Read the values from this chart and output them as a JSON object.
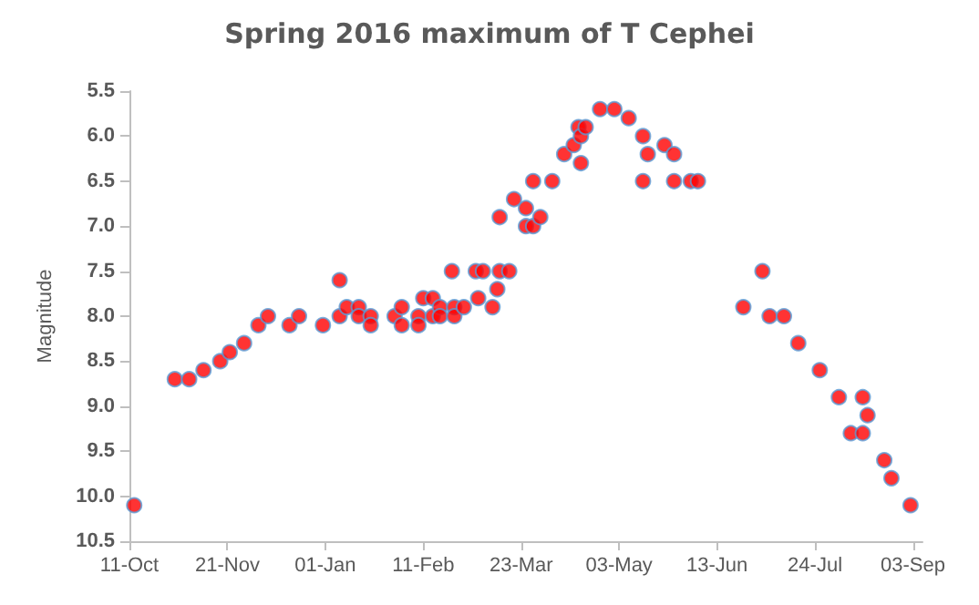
{
  "chart_data": {
    "type": "scatter",
    "title": "Spring 2016 maximum of T Cephei",
    "ylabel": "Magnitude",
    "marker": "circle",
    "color": "#ff0000",
    "x": [
      "2015-10-13",
      "2015-10-30",
      "2015-11-05",
      "2015-11-11",
      "2015-11-18",
      "2015-11-22",
      "2015-11-28",
      "2015-12-04",
      "2015-12-08",
      "2015-12-17",
      "2015-12-21",
      "2015-12-31",
      "2016-01-07",
      "2016-01-07",
      "2016-01-10",
      "2016-01-15",
      "2016-01-15",
      "2016-01-20",
      "2016-01-20",
      "2016-01-30",
      "2016-02-02",
      "2016-02-02",
      "2016-02-09",
      "2016-02-09",
      "2016-02-11",
      "2016-02-15",
      "2016-02-15",
      "2016-02-18",
      "2016-02-18",
      "2016-02-23",
      "2016-02-24",
      "2016-02-24",
      "2016-02-28",
      "2016-03-04",
      "2016-03-05",
      "2016-03-07",
      "2016-03-11",
      "2016-03-13",
      "2016-03-14",
      "2016-03-14",
      "2016-03-18",
      "2016-03-20",
      "2016-03-25",
      "2016-03-25",
      "2016-03-28",
      "2016-03-28",
      "2016-03-31",
      "2016-04-05",
      "2016-04-10",
      "2016-04-14",
      "2016-04-16",
      "2016-04-17",
      "2016-04-17",
      "2016-04-19",
      "2016-04-25",
      "2016-05-01",
      "2016-05-07",
      "2016-05-13",
      "2016-05-13",
      "2016-05-15",
      "2016-05-22",
      "2016-05-26",
      "2016-05-26",
      "2016-06-02",
      "2016-06-05",
      "2016-06-24",
      "2016-07-02",
      "2016-07-05",
      "2016-07-11",
      "2016-07-17",
      "2016-07-26",
      "2016-08-03",
      "2016-08-08",
      "2016-08-13",
      "2016-08-13",
      "2016-08-15",
      "2016-08-22",
      "2016-08-25",
      "2016-09-02"
    ],
    "values": [
      10.1,
      8.7,
      8.7,
      8.6,
      8.5,
      8.4,
      8.3,
      8.1,
      8.0,
      8.1,
      8.0,
      8.1,
      8.0,
      7.6,
      7.9,
      7.9,
      8.0,
      8.0,
      8.1,
      8.0,
      7.9,
      8.1,
      8.0,
      8.1,
      7.8,
      7.8,
      8.0,
      7.9,
      8.0,
      7.5,
      7.9,
      8.0,
      7.9,
      7.5,
      7.8,
      7.5,
      7.9,
      7.7,
      7.5,
      6.9,
      7.5,
      6.7,
      6.8,
      7.0,
      7.0,
      6.5,
      6.9,
      6.5,
      6.2,
      6.1,
      5.9,
      6.0,
      6.3,
      5.9,
      5.7,
      5.7,
      5.8,
      6.0,
      6.5,
      6.2,
      6.1,
      6.2,
      6.5,
      6.5,
      6.5,
      7.9,
      7.5,
      8.0,
      8.0,
      8.3,
      8.6,
      8.9,
      9.3,
      8.9,
      9.3,
      9.1,
      9.6,
      9.8,
      10.1
    ],
    "xlim": [
      "2015-10-11",
      "2016-09-07"
    ],
    "xticks": [
      {
        "value": "2015-10-11",
        "label": "11-Oct"
      },
      {
        "value": "2015-11-21",
        "label": "21-Nov"
      },
      {
        "value": "2016-01-01",
        "label": "01-Jan"
      },
      {
        "value": "2016-02-11",
        "label": "11-Feb"
      },
      {
        "value": "2016-03-23",
        "label": "23-Mar"
      },
      {
        "value": "2016-05-03",
        "label": "03-May"
      },
      {
        "value": "2016-06-13",
        "label": "13-Jun"
      },
      {
        "value": "2016-07-24",
        "label": "24-Jul"
      },
      {
        "value": "2016-09-03",
        "label": "03-Sep"
      }
    ],
    "ylim": [
      10.5,
      5.5
    ],
    "yticks": [
      5.5,
      {
        "value": 6,
        "label": "6.0"
      },
      6.5,
      {
        "value": 7,
        "label": "7.0"
      },
      7.5,
      {
        "value": 8,
        "label": "8.0"
      },
      8.5,
      {
        "value": 9,
        "label": "9.0"
      },
      9.5,
      {
        "value": 10,
        "label": "10.0"
      },
      10.5
    ]
  }
}
